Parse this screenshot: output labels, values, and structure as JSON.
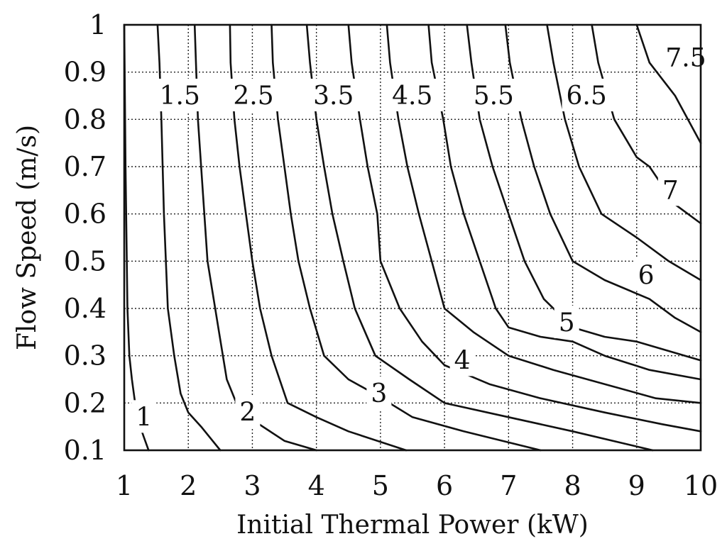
{
  "chart_data": {
    "type": "line",
    "subtype": "contour",
    "title": "",
    "xlabel": "Initial Thermal Power (kW)",
    "ylabel": "Flow Speed (m/s)",
    "xlim": [
      1,
      10
    ],
    "ylim": [
      0.1,
      1
    ],
    "xticks": [
      "1",
      "2",
      "3",
      "4",
      "5",
      "6",
      "7",
      "8",
      "9",
      "10"
    ],
    "yticks": [
      "0.1",
      "0.2",
      "0.3",
      "0.4",
      "0.5",
      "0.6",
      "0.7",
      "0.8",
      "0.9",
      "1"
    ],
    "grid": true,
    "series": [
      {
        "name": "1",
        "points": [
          [
            1.0,
            1.0
          ],
          [
            1.02,
            0.7
          ],
          [
            1.05,
            0.4
          ],
          [
            1.08,
            0.3
          ],
          [
            1.12,
            0.25
          ],
          [
            1.2,
            0.17
          ],
          [
            1.3,
            0.13
          ],
          [
            1.38,
            0.1
          ]
        ]
      },
      {
        "name": "1.5",
        "points": [
          [
            1.52,
            1.0
          ],
          [
            1.55,
            0.92
          ],
          [
            1.58,
            0.8
          ],
          [
            1.62,
            0.6
          ],
          [
            1.68,
            0.4
          ],
          [
            1.78,
            0.3
          ],
          [
            1.88,
            0.22
          ],
          [
            2.0,
            0.18
          ],
          [
            2.2,
            0.15
          ],
          [
            2.38,
            0.12
          ],
          [
            2.5,
            0.1
          ]
        ]
      },
      {
        "name": "2",
        "points": [
          [
            2.1,
            1.0
          ],
          [
            2.12,
            0.92
          ],
          [
            2.15,
            0.8
          ],
          [
            2.2,
            0.7
          ],
          [
            2.3,
            0.5
          ],
          [
            2.48,
            0.35
          ],
          [
            2.6,
            0.25
          ],
          [
            2.75,
            0.2
          ],
          [
            3.05,
            0.16
          ],
          [
            3.5,
            0.12
          ],
          [
            4.0,
            0.1
          ]
        ]
      },
      {
        "name": "2.5",
        "points": [
          [
            2.65,
            1.0
          ],
          [
            2.66,
            0.92
          ],
          [
            2.72,
            0.8
          ],
          [
            2.8,
            0.7
          ],
          [
            2.9,
            0.6
          ],
          [
            3.0,
            0.5
          ],
          [
            3.12,
            0.4
          ],
          [
            3.3,
            0.3
          ],
          [
            3.55,
            0.2
          ],
          [
            4.0,
            0.17
          ],
          [
            4.5,
            0.14
          ],
          [
            5.4,
            0.1
          ]
        ]
      },
      {
        "name": "3",
        "points": [
          [
            3.3,
            1.0
          ],
          [
            3.32,
            0.92
          ],
          [
            3.4,
            0.8
          ],
          [
            3.5,
            0.7
          ],
          [
            3.6,
            0.6
          ],
          [
            3.72,
            0.5
          ],
          [
            3.9,
            0.4
          ],
          [
            4.12,
            0.3
          ],
          [
            4.5,
            0.25
          ],
          [
            4.9,
            0.22
          ],
          [
            5.5,
            0.17
          ],
          [
            6.3,
            0.14
          ],
          [
            7.5,
            0.1
          ]
        ]
      },
      {
        "name": "3.5",
        "points": [
          [
            3.85,
            1.0
          ],
          [
            3.9,
            0.92
          ],
          [
            4.0,
            0.8
          ],
          [
            4.12,
            0.7
          ],
          [
            4.25,
            0.6
          ],
          [
            4.42,
            0.5
          ],
          [
            4.6,
            0.4
          ],
          [
            4.92,
            0.3
          ],
          [
            5.45,
            0.25
          ],
          [
            6.0,
            0.2
          ],
          [
            7.0,
            0.17
          ],
          [
            8.0,
            0.14
          ],
          [
            9.25,
            0.1
          ]
        ]
      },
      {
        "name": "4",
        "points": [
          [
            4.5,
            1.0
          ],
          [
            4.55,
            0.92
          ],
          [
            4.68,
            0.8
          ],
          [
            4.8,
            0.7
          ],
          [
            4.95,
            0.6
          ],
          [
            5.0,
            0.5
          ],
          [
            5.3,
            0.4
          ],
          [
            5.65,
            0.33
          ],
          [
            6.0,
            0.28
          ],
          [
            6.7,
            0.24
          ],
          [
            7.5,
            0.21
          ],
          [
            8.5,
            0.18
          ],
          [
            9.4,
            0.155
          ],
          [
            10.0,
            0.14
          ]
        ]
      },
      {
        "name": "4.5",
        "points": [
          [
            5.1,
            1.0
          ],
          [
            5.15,
            0.92
          ],
          [
            5.28,
            0.8
          ],
          [
            5.42,
            0.7
          ],
          [
            5.6,
            0.6
          ],
          [
            5.8,
            0.5
          ],
          [
            6.0,
            0.4
          ],
          [
            6.45,
            0.35
          ],
          [
            7.0,
            0.3
          ],
          [
            7.7,
            0.27
          ],
          [
            8.5,
            0.24
          ],
          [
            9.3,
            0.21
          ],
          [
            10.0,
            0.2
          ]
        ]
      },
      {
        "name": "5",
        "points": [
          [
            5.75,
            1.0
          ],
          [
            5.8,
            0.92
          ],
          [
            5.98,
            0.8
          ],
          [
            6.1,
            0.7
          ],
          [
            6.3,
            0.6
          ],
          [
            6.55,
            0.5
          ],
          [
            6.8,
            0.4
          ],
          [
            7.0,
            0.36
          ],
          [
            7.5,
            0.34
          ],
          [
            8.0,
            0.33
          ],
          [
            8.5,
            0.3
          ],
          [
            9.2,
            0.27
          ],
          [
            10.0,
            0.25
          ]
        ]
      },
      {
        "name": "5.5",
        "points": [
          [
            6.35,
            1.0
          ],
          [
            6.42,
            0.92
          ],
          [
            6.55,
            0.8
          ],
          [
            6.75,
            0.7
          ],
          [
            7.0,
            0.6
          ],
          [
            7.25,
            0.5
          ],
          [
            7.55,
            0.42
          ],
          [
            8.0,
            0.36
          ],
          [
            8.5,
            0.34
          ],
          [
            9.0,
            0.33
          ],
          [
            9.5,
            0.31
          ],
          [
            10.0,
            0.29
          ]
        ]
      },
      {
        "name": "6",
        "points": [
          [
            6.95,
            1.0
          ],
          [
            7.02,
            0.92
          ],
          [
            7.2,
            0.8
          ],
          [
            7.4,
            0.7
          ],
          [
            7.65,
            0.6
          ],
          [
            8.0,
            0.5
          ],
          [
            8.5,
            0.46
          ],
          [
            9.2,
            0.42
          ],
          [
            9.6,
            0.38
          ],
          [
            10.0,
            0.35
          ]
        ]
      },
      {
        "name": "6.5",
        "points": [
          [
            7.6,
            1.0
          ],
          [
            7.7,
            0.92
          ],
          [
            7.88,
            0.8
          ],
          [
            8.1,
            0.7
          ],
          [
            8.45,
            0.6
          ],
          [
            9.0,
            0.55
          ],
          [
            9.5,
            0.5
          ],
          [
            10.0,
            0.46
          ]
        ]
      },
      {
        "name": "7",
        "points": [
          [
            8.3,
            1.0
          ],
          [
            8.4,
            0.92
          ],
          [
            8.65,
            0.8
          ],
          [
            9.0,
            0.72
          ],
          [
            9.2,
            0.7
          ],
          [
            9.6,
            0.62
          ],
          [
            10.0,
            0.58
          ]
        ]
      },
      {
        "name": "7.5",
        "points": [
          [
            9.0,
            1.0
          ],
          [
            9.2,
            0.92
          ],
          [
            9.6,
            0.85
          ],
          [
            10.0,
            0.75
          ]
        ]
      }
    ],
    "contour_labels": [
      {
        "text": "1",
        "x": 1.18,
        "y": 0.17
      },
      {
        "text": "1.5",
        "x": 1.55,
        "y": 0.85
      },
      {
        "text": "2",
        "x": 2.8,
        "y": 0.18
      },
      {
        "text": "2.5",
        "x": 2.7,
        "y": 0.85
      },
      {
        "text": "3",
        "x": 4.85,
        "y": 0.22
      },
      {
        "text": "3.5",
        "x": 3.95,
        "y": 0.85
      },
      {
        "text": "4",
        "x": 6.15,
        "y": 0.29
      },
      {
        "text": "4.5",
        "x": 5.18,
        "y": 0.85
      },
      {
        "text": "5",
        "x": 7.78,
        "y": 0.37
      },
      {
        "text": "5.5",
        "x": 6.45,
        "y": 0.85
      },
      {
        "text": "6",
        "x": 9.02,
        "y": 0.47
      },
      {
        "text": "6.5",
        "x": 7.9,
        "y": 0.85
      },
      {
        "text": "7",
        "x": 9.4,
        "y": 0.65
      },
      {
        "text": "7.5",
        "x": 9.45,
        "y": 0.93
      }
    ]
  }
}
